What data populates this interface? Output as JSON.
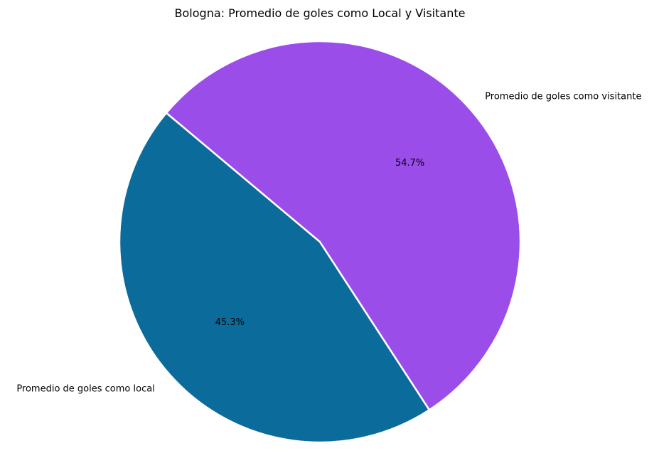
{
  "chart_data": {
    "type": "pie",
    "title": "Bologna: Promedio de goles como Local y Visitante",
    "categories": [
      "Promedio de goles como local",
      "Promedio de goles como visitante"
    ],
    "values": [
      45.3,
      54.7
    ],
    "value_labels": [
      "45.3%",
      "54.7%"
    ],
    "colors": [
      "#0b6c9c",
      "#9b4dea"
    ],
    "start_angle_deg": 140,
    "direction": "counterclockwise",
    "legend": "none"
  }
}
